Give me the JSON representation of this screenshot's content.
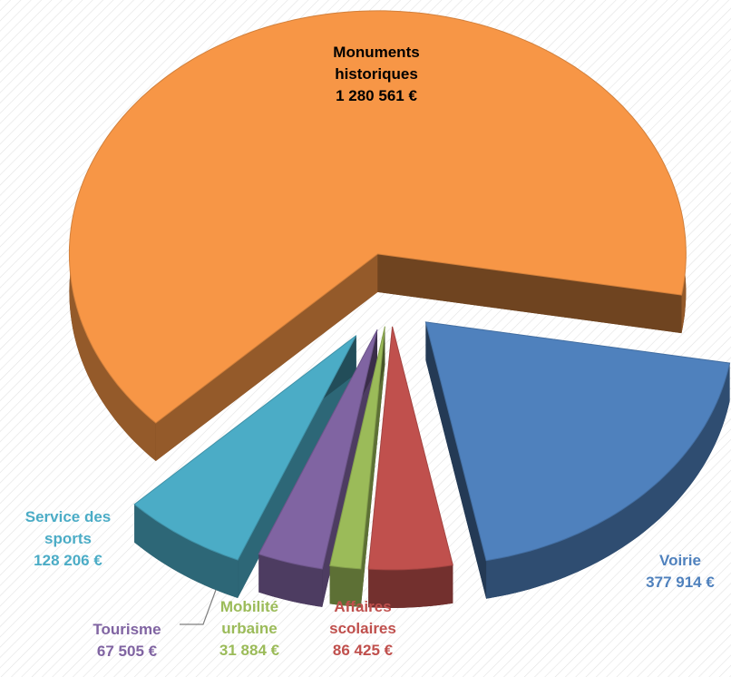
{
  "chart_data": {
    "type": "pie",
    "categories": [
      "Monuments historiques",
      "Voirie",
      "Affaires scolaires",
      "Mobilité urbaine",
      "Tourisme",
      "Service des sports"
    ],
    "values": [
      1280561,
      377914,
      86425,
      31884,
      67505,
      128206
    ],
    "value_labels": [
      "1 280 561 €",
      "377 914 €",
      "86 425 €",
      "31 884 €",
      "67 505 €",
      "128 206 €"
    ],
    "colors": [
      "#f79646",
      "#4f81bd",
      "#c0504d",
      "#9bbb59",
      "#8064a2",
      "#4bacc6"
    ],
    "label_colors": [
      "#000000",
      "#4f81bd",
      "#c0504d",
      "#9bbb59",
      "#8064a2",
      "#4bacc6"
    ]
  }
}
